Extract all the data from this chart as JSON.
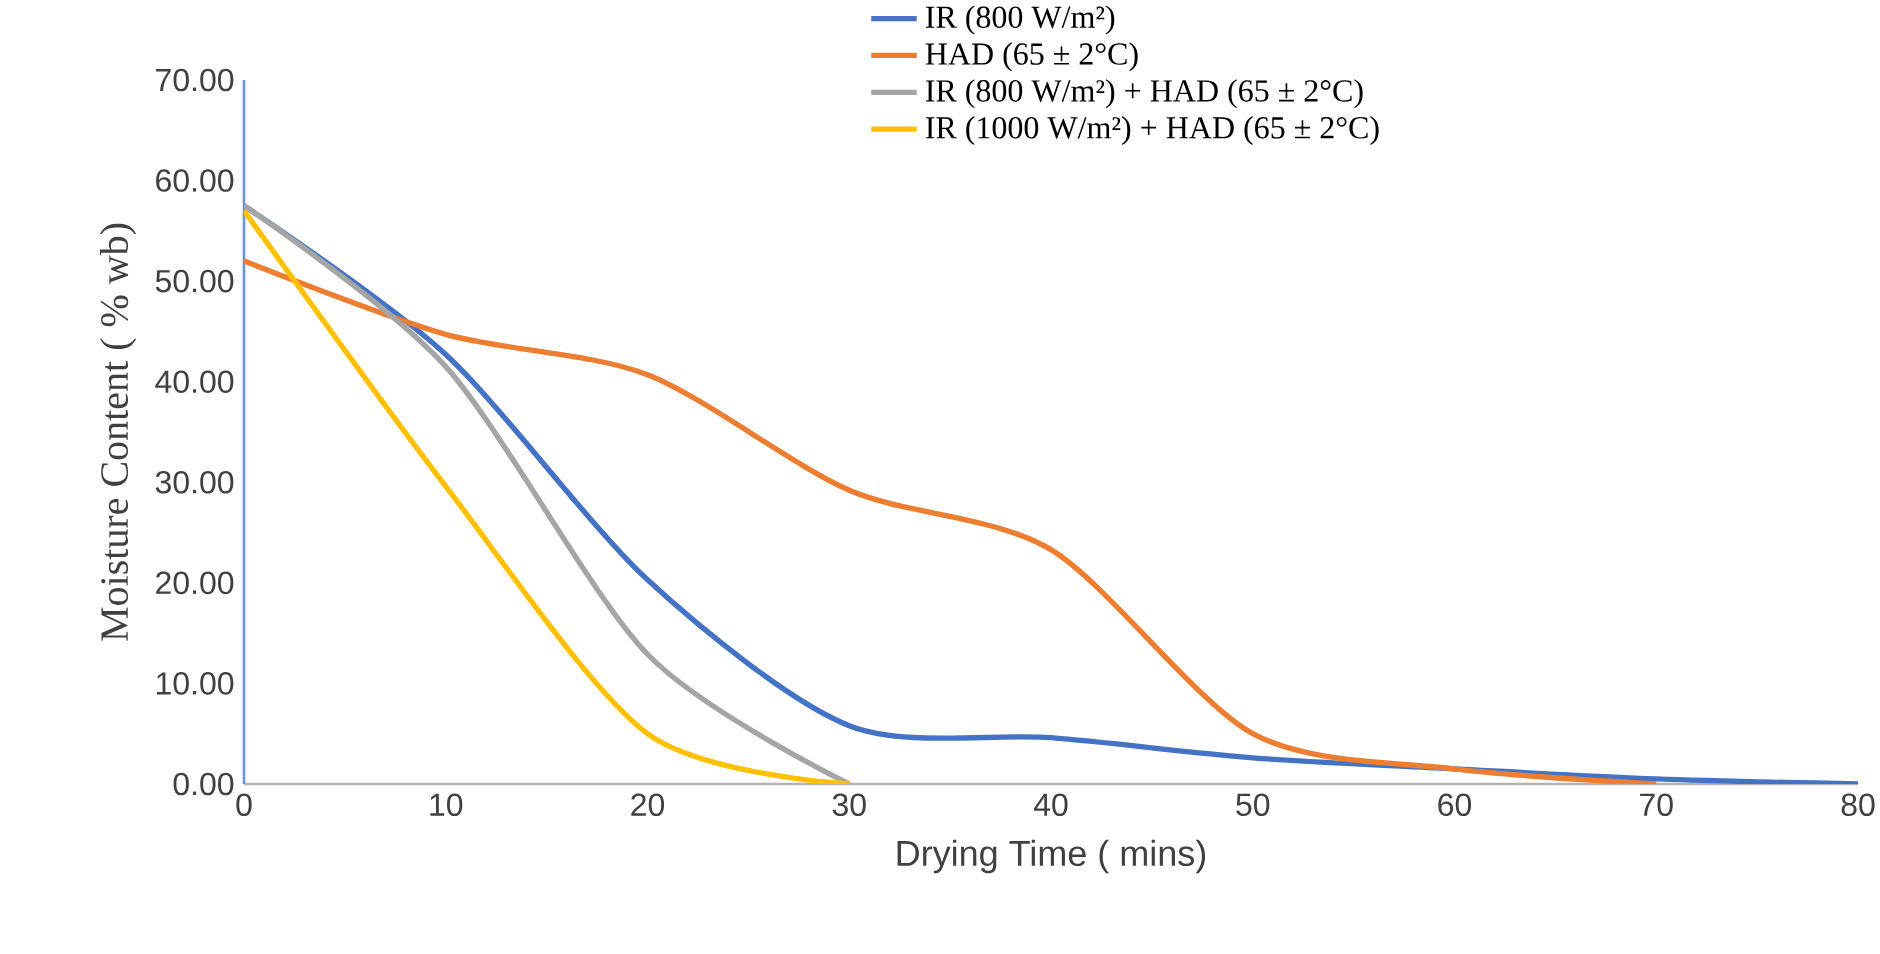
{
  "chart_data": {
    "type": "line",
    "xlabel": "Drying Time ( mins)",
    "ylabel": "Moisture Content ( % wb)",
    "xlim": [
      0,
      80
    ],
    "xticks": [
      0,
      10,
      20,
      30,
      40,
      50,
      60,
      70,
      80
    ],
    "ylim": [
      0,
      70
    ],
    "yticks": [
      {
        "value": 0,
        "label": "0.00"
      },
      {
        "value": 10,
        "label": "10.00"
      },
      {
        "value": 20,
        "label": "20.00"
      },
      {
        "value": 30,
        "label": "30.00"
      },
      {
        "value": 40,
        "label": "40.00"
      },
      {
        "value": 50,
        "label": "50.00"
      },
      {
        "value": 60,
        "label": "60.00"
      },
      {
        "value": 70,
        "label": "70.00"
      }
    ],
    "grid": false,
    "legend": "top right",
    "series": [
      {
        "name": "IR (800 W/m²)",
        "color": "#4472c4",
        "x": [
          0,
          10,
          20,
          30,
          40,
          50,
          60,
          70,
          80
        ],
        "values": [
          57.5,
          42.7,
          20.3,
          5.8,
          4.6,
          2.6,
          1.5,
          0.5,
          0
        ]
      },
      {
        "name": "HAD (65 ± 2°C)",
        "color": "#ed7d31",
        "x": [
          0,
          10,
          20,
          30,
          40,
          50,
          60,
          70
        ],
        "values": [
          52,
          44.7,
          40.7,
          29.2,
          23.3,
          5,
          1.5,
          0
        ]
      },
      {
        "name": "IR (800 W/m²) + HAD (65 ± 2°C)",
        "color": "#a5a5a5",
        "x": [
          0,
          10,
          20,
          30
        ],
        "values": [
          57.5,
          41.5,
          12.9,
          0
        ]
      },
      {
        "name": "IR (1000 W/m²) + HAD (65 ± 2°C)",
        "color": "#ffc000",
        "x": [
          0,
          10,
          20,
          30
        ],
        "values": [
          57,
          29.6,
          5,
          0
        ]
      }
    ]
  }
}
